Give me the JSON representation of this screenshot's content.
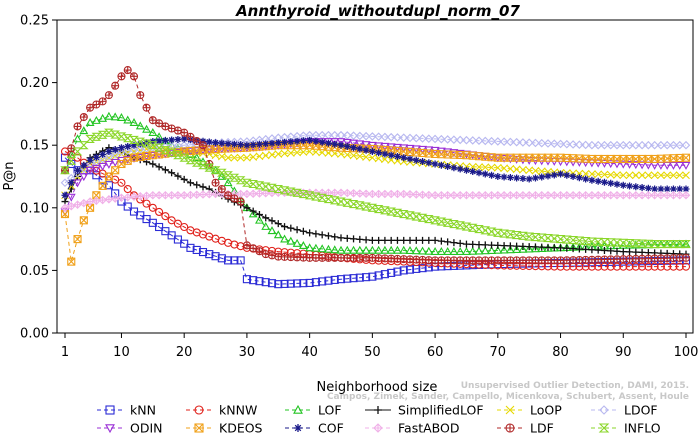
{
  "watermark": {
    "line1": "Unsupervised Outlier Detection, DAMI, 2015.",
    "line2": "Campos, Zimek, Sander, Campello, Micenkova, Schubert, Assent, Houle"
  },
  "chart_data": {
    "type": "line",
    "title": "Annthyroid_withoutdupl_norm_07",
    "xlabel": "Neighborhood size",
    "ylabel": "P@n",
    "xlim": [
      1,
      100
    ],
    "ylim": [
      0,
      0.25
    ],
    "xticks": [
      1,
      10,
      20,
      30,
      40,
      50,
      60,
      70,
      80,
      90,
      100
    ],
    "yticks": [
      "0.00",
      "0.05",
      "0.10",
      "0.15",
      "0.20",
      "0.25"
    ],
    "grid": false,
    "legend_position": "bottom",
    "series": [
      {
        "name": "kNN",
        "color": "#2b2bd6",
        "marker": "square",
        "dash": "4,3",
        "x": [
          1,
          3,
          5,
          8,
          10,
          12,
          15,
          18,
          21,
          24,
          27,
          29,
          30,
          35,
          40,
          45,
          50,
          55,
          60,
          65,
          70,
          80,
          90,
          100
        ],
        "y": [
          0.14,
          0.13,
          0.13,
          0.118,
          0.105,
          0.097,
          0.088,
          0.078,
          0.068,
          0.063,
          0.058,
          0.058,
          0.043,
          0.039,
          0.04,
          0.043,
          0.045,
          0.05,
          0.053,
          0.054,
          0.055,
          0.056,
          0.057,
          0.058
        ]
      },
      {
        "name": "kNNW",
        "color": "#e0201a",
        "marker": "circle",
        "dash": "4,3",
        "x": [
          1,
          3,
          5,
          8,
          10,
          12,
          15,
          18,
          21,
          24,
          27,
          30,
          35,
          40,
          45,
          50,
          55,
          60,
          65,
          70,
          80,
          90,
          100
        ],
        "y": [
          0.145,
          0.14,
          0.132,
          0.125,
          0.12,
          0.11,
          0.1,
          0.09,
          0.082,
          0.077,
          0.072,
          0.068,
          0.065,
          0.063,
          0.06,
          0.058,
          0.057,
          0.056,
          0.055,
          0.054,
          0.053,
          0.053,
          0.053
        ]
      },
      {
        "name": "LOF",
        "color": "#22c422",
        "marker": "triangle",
        "dash": "4,3",
        "x": [
          1,
          3,
          5,
          8,
          10,
          12,
          15,
          18,
          20,
          22,
          25,
          27,
          30,
          33,
          36,
          40,
          45,
          50,
          55,
          60,
          65,
          70,
          80,
          90,
          100
        ],
        "y": [
          0.13,
          0.155,
          0.168,
          0.173,
          0.172,
          0.168,
          0.16,
          0.15,
          0.145,
          0.14,
          0.13,
          0.12,
          0.1,
          0.085,
          0.075,
          0.068,
          0.066,
          0.066,
          0.066,
          0.065,
          0.065,
          0.066,
          0.068,
          0.07,
          0.071
        ]
      },
      {
        "name": "SimplifiedLOF",
        "color": "#111111",
        "marker": "plus",
        "dash": "",
        "x": [
          1,
          3,
          5,
          8,
          10,
          12,
          15,
          18,
          21,
          24,
          27,
          30,
          33,
          36,
          40,
          45,
          50,
          55,
          60,
          65,
          70,
          80,
          90,
          100
        ],
        "y": [
          0.105,
          0.125,
          0.14,
          0.148,
          0.145,
          0.14,
          0.135,
          0.128,
          0.12,
          0.115,
          0.107,
          0.1,
          0.092,
          0.085,
          0.08,
          0.076,
          0.074,
          0.074,
          0.074,
          0.071,
          0.07,
          0.068,
          0.065,
          0.063
        ]
      },
      {
        "name": "LoOP",
        "color": "#e6d800",
        "marker": "x",
        "dash": "4,3",
        "x": [
          1,
          3,
          5,
          8,
          10,
          12,
          15,
          18,
          21,
          24,
          27,
          30,
          35,
          40,
          45,
          50,
          55,
          60,
          65,
          70,
          75,
          80,
          85,
          90,
          95,
          100
        ],
        "y": [
          0.11,
          0.125,
          0.135,
          0.14,
          0.143,
          0.145,
          0.148,
          0.147,
          0.145,
          0.143,
          0.14,
          0.14,
          0.143,
          0.145,
          0.143,
          0.14,
          0.137,
          0.135,
          0.133,
          0.132,
          0.13,
          0.128,
          0.127,
          0.126,
          0.126,
          0.126
        ]
      },
      {
        "name": "LDOF",
        "color": "#b8b8f0",
        "marker": "diamond",
        "dash": "4,3",
        "x": [
          1,
          5,
          10,
          15,
          20,
          25,
          30,
          35,
          40,
          45,
          50,
          55,
          60,
          65,
          70,
          75,
          80,
          85,
          90,
          95,
          100
        ],
        "y": [
          0.12,
          0.135,
          0.145,
          0.148,
          0.15,
          0.152,
          0.153,
          0.156,
          0.158,
          0.158,
          0.157,
          0.156,
          0.155,
          0.154,
          0.153,
          0.152,
          0.151,
          0.15,
          0.15,
          0.15,
          0.15
        ]
      },
      {
        "name": "ODIN",
        "color": "#9a2fd6",
        "marker": "triangle-down",
        "dash": "4,3",
        "x": [
          1,
          3,
          5,
          10,
          15,
          20,
          25,
          30,
          35,
          40,
          45,
          50,
          55,
          60,
          65,
          70,
          75,
          80,
          85,
          90,
          95,
          100
        ],
        "y": [
          0.097,
          0.12,
          0.13,
          0.138,
          0.142,
          0.145,
          0.147,
          0.148,
          0.15,
          0.153,
          0.153,
          0.15,
          0.148,
          0.146,
          0.143,
          0.14,
          0.138,
          0.137,
          0.136,
          0.135,
          0.134,
          0.134
        ]
      },
      {
        "name": "KDEOS",
        "color": "#f0a018",
        "marker": "square-x",
        "dash": "4,3",
        "x": [
          1,
          2,
          3,
          4,
          5,
          6,
          8,
          10,
          12,
          15,
          20,
          25,
          30,
          35,
          40,
          45,
          50,
          55,
          60,
          65,
          70,
          75,
          80,
          85,
          90,
          95,
          100
        ],
        "y": [
          0.095,
          0.057,
          0.075,
          0.09,
          0.1,
          0.11,
          0.125,
          0.135,
          0.14,
          0.142,
          0.145,
          0.147,
          0.148,
          0.15,
          0.15,
          0.148,
          0.147,
          0.145,
          0.143,
          0.142,
          0.14,
          0.14,
          0.14,
          0.139,
          0.139,
          0.139,
          0.14
        ]
      },
      {
        "name": "COF",
        "color": "#1a1a8a",
        "marker": "asterisk",
        "dash": "4,3",
        "x": [
          1,
          3,
          5,
          8,
          10,
          12,
          15,
          20,
          25,
          30,
          35,
          40,
          45,
          50,
          55,
          60,
          65,
          70,
          75,
          80,
          85,
          90,
          95,
          100
        ],
        "y": [
          0.11,
          0.13,
          0.138,
          0.145,
          0.148,
          0.15,
          0.153,
          0.155,
          0.152,
          0.15,
          0.152,
          0.154,
          0.15,
          0.145,
          0.14,
          0.135,
          0.13,
          0.125,
          0.123,
          0.127,
          0.122,
          0.118,
          0.115,
          0.115
        ]
      },
      {
        "name": "FastABOD",
        "color": "#f0b0e8",
        "marker": "diamond-plus",
        "dash": "4,3",
        "x": [
          1,
          5,
          10,
          15,
          20,
          25,
          30,
          35,
          40,
          45,
          50,
          55,
          60,
          65,
          70,
          75,
          80,
          85,
          90,
          95,
          100
        ],
        "y": [
          0.1,
          0.105,
          0.108,
          0.11,
          0.11,
          0.111,
          0.111,
          0.112,
          0.112,
          0.112,
          0.111,
          0.111,
          0.11,
          0.11,
          0.11,
          0.11,
          0.11,
          0.11,
          0.11,
          0.11,
          0.11
        ]
      },
      {
        "name": "LDF",
        "color": "#b02828",
        "marker": "circle-plus",
        "dash": "4,3",
        "x": [
          1,
          3,
          5,
          7,
          8,
          10,
          11,
          12,
          13,
          15,
          17,
          20,
          23,
          25,
          27,
          29,
          30,
          33,
          35,
          40,
          45,
          50,
          55,
          60,
          65,
          70,
          80,
          90,
          100
        ],
        "y": [
          0.13,
          0.165,
          0.18,
          0.185,
          0.19,
          0.205,
          0.21,
          0.205,
          0.19,
          0.17,
          0.165,
          0.16,
          0.15,
          0.12,
          0.11,
          0.105,
          0.07,
          0.063,
          0.061,
          0.06,
          0.06,
          0.06,
          0.059,
          0.058,
          0.058,
          0.058,
          0.058,
          0.059,
          0.06
        ]
      },
      {
        "name": "INFLO",
        "color": "#8ad628",
        "marker": "hourglass",
        "dash": "4,3",
        "x": [
          1,
          3,
          5,
          8,
          10,
          15,
          20,
          25,
          30,
          35,
          40,
          45,
          50,
          55,
          60,
          65,
          70,
          75,
          80,
          85,
          90,
          95,
          100
        ],
        "y": [
          0.13,
          0.145,
          0.155,
          0.16,
          0.157,
          0.15,
          0.14,
          0.13,
          0.12,
          0.115,
          0.11,
          0.105,
          0.1,
          0.095,
          0.09,
          0.085,
          0.08,
          0.077,
          0.075,
          0.073,
          0.072,
          0.071,
          0.071
        ]
      }
    ]
  }
}
